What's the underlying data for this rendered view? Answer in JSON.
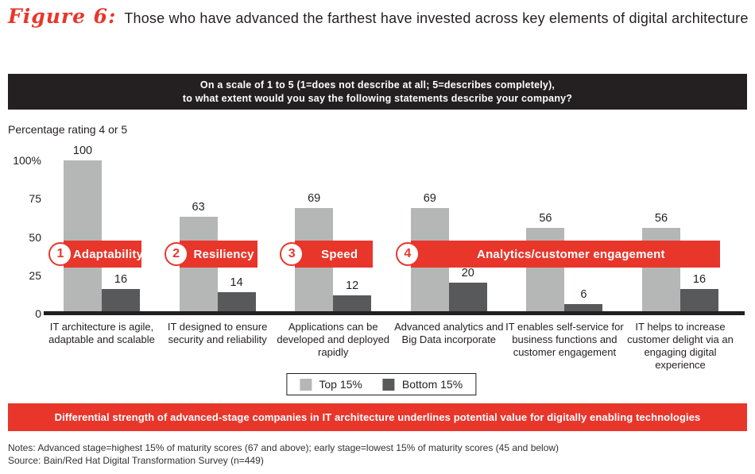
{
  "title": {
    "figure_label": "Figure 6:",
    "text": "Those who have advanced the farthest have invested across key elements of digital architecture"
  },
  "question_banner": {
    "line1": "On a scale of 1 to 5 (1=does not describe at all; 5=describes completely),",
    "line2": "to what extent would you say the following statements describe your company?"
  },
  "axis_note": "Percentage rating 4 or 5",
  "chart_data": {
    "type": "bar",
    "title": "Percentage rating 4 or 5",
    "categories": [
      "IT architecture is agile, adaptable and scalable",
      "IT designed to ensure security and reliability",
      "Applications can be developed and deployed rapidly",
      "Advanced analytics and Big Data incorporate",
      "IT enables self-service for business functions and customer engagement",
      "IT helps to increase customer delight via an engaging digital experience"
    ],
    "series": [
      {
        "name": "Top 15%",
        "values": [
          100,
          63,
          69,
          69,
          56,
          56
        ],
        "color": "#b5b7b6"
      },
      {
        "name": "Bottom 15%",
        "values": [
          16,
          14,
          12,
          20,
          6,
          16
        ],
        "color": "#58595b"
      }
    ],
    "ylim": [
      0,
      100
    ],
    "yticks": [
      0,
      25,
      50,
      75,
      100
    ],
    "ytick_labels": [
      "0",
      "25",
      "50",
      "75",
      "100%"
    ],
    "grid": false,
    "legend_position": "bottom",
    "bands": [
      {
        "number": "1",
        "label": "Adaptability",
        "from": 0,
        "to": 0
      },
      {
        "number": "2",
        "label": "Resiliency",
        "from": 1,
        "to": 1
      },
      {
        "number": "3",
        "label": "Speed",
        "from": 2,
        "to": 2
      },
      {
        "number": "4",
        "label": "Analytics/customer engagement",
        "from": 3,
        "to": 5
      }
    ]
  },
  "legend": {
    "items": [
      {
        "label": "Top 15%",
        "color": "#b5b7b6"
      },
      {
        "label": "Bottom 15%",
        "color": "#58595b"
      }
    ]
  },
  "callout_banner": "Differential strength of advanced-stage companies in IT architecture underlines potential value for digitally enabling technologies",
  "notes": "Notes: Advanced stage=highest 15% of maturity scores (67 and above); early stage=lowest 15% of maturity scores (45 and below)",
  "source": "Source: Bain/Red Hat Digital Transformation Survey (n=449)",
  "colors": {
    "accent_red": "#e8362b",
    "banner_black": "#242021",
    "bar_light": "#b5b7b6",
    "bar_dark": "#58595b",
    "axis_black": "#231f20"
  }
}
